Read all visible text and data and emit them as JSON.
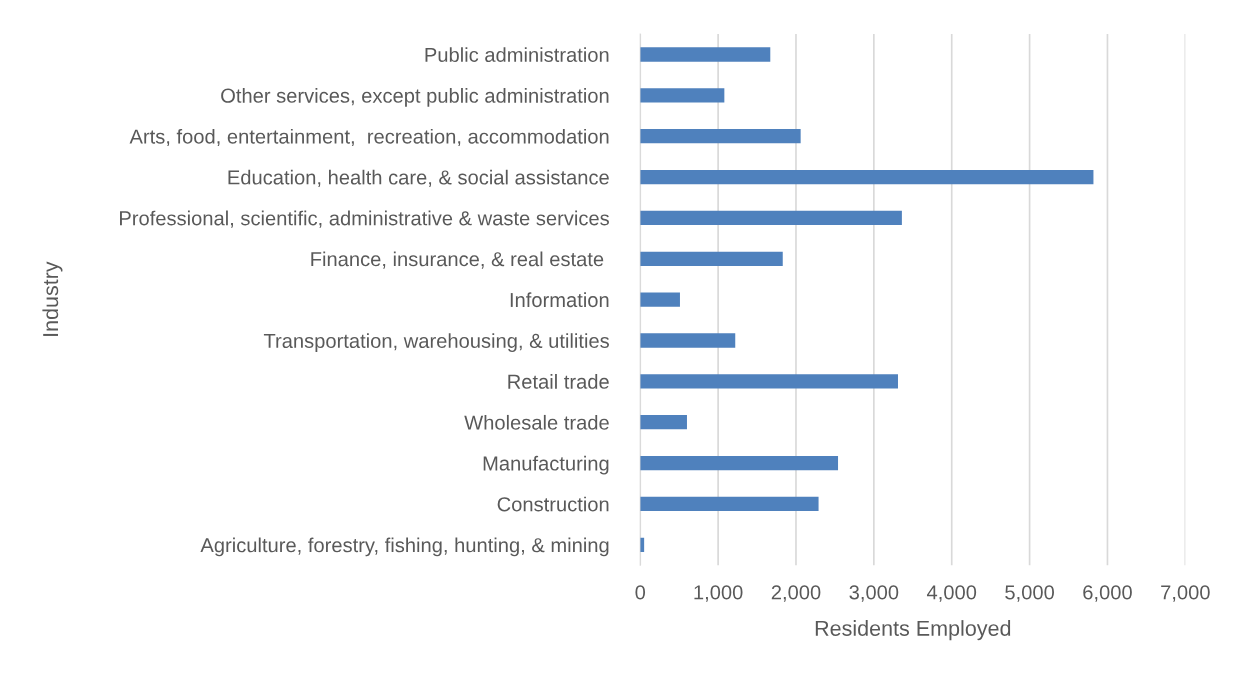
{
  "chart_data": {
    "type": "bar",
    "orientation": "horizontal",
    "xlabel": "Residents Employed",
    "ylabel": "Industry",
    "categories": [
      "Public administration",
      "Other services, except public administration",
      "Arts, food, entertainment,  recreation, accommodation",
      "Education, health care, & social assistance",
      "Professional, scientific, administrative & waste services",
      "Finance, insurance, & real estate ",
      "Information",
      "Transportation, warehousing, & utilities",
      "Retail trade",
      "Wholesale trade",
      "Manufacturing",
      "Construction",
      "Agriculture, forestry, fishing, hunting, & mining"
    ],
    "values": [
      1670,
      1080,
      2060,
      5820,
      3360,
      1830,
      510,
      1220,
      3310,
      600,
      2540,
      2290,
      50
    ],
    "color": "#4f81bd",
    "xlim": [
      0,
      7000
    ],
    "xticks": [
      {
        "value": 0,
        "label": "0"
      },
      {
        "value": 1000,
        "label": "1,000"
      },
      {
        "value": 2000,
        "label": "2,000"
      },
      {
        "value": 3000,
        "label": "3,000"
      },
      {
        "value": 4000,
        "label": "4,000"
      },
      {
        "value": 5000,
        "label": "5,000"
      },
      {
        "value": 6000,
        "label": "6,000"
      },
      {
        "value": 7000,
        "label": "7,000"
      }
    ],
    "grid": "x",
    "legend": false
  }
}
